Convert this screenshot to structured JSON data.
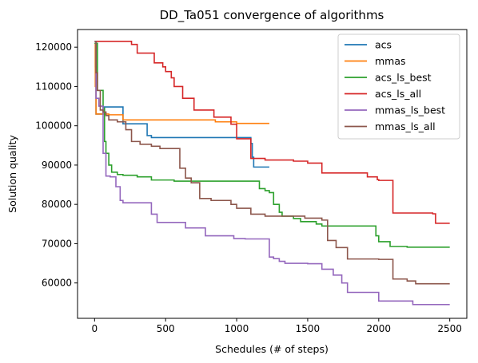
{
  "chart_data": {
    "type": "line",
    "title": "DD_Ta051 convergence of algorithms",
    "xlabel": "Schedules (# of steps)",
    "ylabel": "Solution quality",
    "xlim": [
      -120,
      2620
    ],
    "ylim": [
      51000,
      124500
    ],
    "xticks": [
      0,
      500,
      1000,
      1500,
      2000,
      2500
    ],
    "yticks": [
      60000,
      70000,
      80000,
      90000,
      100000,
      110000,
      120000
    ],
    "grid": false,
    "legend": "top-right",
    "step": true,
    "series": [
      {
        "name": "acs",
        "color": "#1f77b4",
        "x": [
          0,
          5,
          10,
          60,
          200,
          350,
          370,
          400,
          1000,
          1100,
          1110,
          1120,
          1230
        ],
        "y": [
          121000,
          115000,
          103000,
          104800,
          100500,
          100500,
          97500,
          97000,
          97000,
          95500,
          92000,
          89500,
          89500
        ]
      },
      {
        "name": "mmas",
        "color": "#ff7f0e",
        "x": [
          0,
          5,
          10,
          100,
          200,
          850,
          1000,
          1230
        ],
        "y": [
          121000,
          110000,
          103000,
          102800,
          101500,
          101000,
          100600,
          100600
        ]
      },
      {
        "name": "acs_ls_best",
        "color": "#2ca02c",
        "x": [
          0,
          20,
          60,
          70,
          80,
          100,
          120,
          160,
          200,
          300,
          400,
          560,
          1000,
          1160,
          1200,
          1230,
          1260,
          1300,
          1320,
          1400,
          1450,
          1560,
          1600,
          1750,
          1980,
          2000,
          2080,
          2200,
          2500
        ],
        "y": [
          121000,
          109000,
          104500,
          96000,
          93000,
          90000,
          88200,
          87600,
          87400,
          87000,
          86200,
          85900,
          85900,
          84000,
          83500,
          83000,
          80000,
          78000,
          77000,
          76400,
          75600,
          75000,
          74500,
          74500,
          72000,
          70500,
          69300,
          69100,
          69100
        ]
      },
      {
        "name": "acs_ls_all",
        "color": "#d62728",
        "x": [
          0,
          5,
          260,
          300,
          420,
          480,
          500,
          540,
          560,
          620,
          700,
          840,
          960,
          1000,
          1100,
          1200,
          1400,
          1500,
          1600,
          1850,
          1920,
          1990,
          2000,
          2100,
          2380,
          2400,
          2500
        ],
        "y": [
          121500,
          121500,
          120700,
          118500,
          116000,
          115000,
          113800,
          112200,
          110000,
          107000,
          104000,
          102200,
          100400,
          96700,
          91700,
          91300,
          91000,
          90500,
          88000,
          88000,
          87000,
          86300,
          86100,
          77800,
          77600,
          75200,
          75200
        ]
      },
      {
        "name": "mmas_ls_best",
        "color": "#9467bd",
        "x": [
          0,
          10,
          30,
          60,
          80,
          110,
          150,
          180,
          200,
          400,
          440,
          640,
          780,
          980,
          1060,
          1230,
          1260,
          1300,
          1340,
          1500,
          1600,
          1680,
          1740,
          1780,
          1980,
          2000,
          2240,
          2500
        ],
        "y": [
          121500,
          107000,
          105000,
          93000,
          87200,
          87000,
          84500,
          81000,
          80400,
          77500,
          75400,
          74000,
          72000,
          71300,
          71200,
          66600,
          66200,
          65500,
          65000,
          64900,
          63500,
          62000,
          60000,
          57600,
          57600,
          55400,
          54500,
          54500
        ]
      },
      {
        "name": "mmas_ls_all",
        "color": "#8c564b",
        "x": [
          0,
          10,
          20,
          40,
          60,
          80,
          100,
          160,
          220,
          260,
          320,
          400,
          460,
          600,
          640,
          680,
          740,
          820,
          960,
          1000,
          1100,
          1200,
          1480,
          1600,
          1640,
          1700,
          1780,
          2000,
          2100,
          2200,
          2260,
          2500
        ],
        "y": [
          121500,
          113500,
          109000,
          104000,
          103500,
          102600,
          101500,
          101000,
          99000,
          96000,
          95300,
          94800,
          94200,
          89200,
          86700,
          85500,
          81500,
          81000,
          80000,
          79000,
          77500,
          77000,
          76500,
          76000,
          70800,
          69000,
          66100,
          66000,
          61000,
          60500,
          59800,
          59800
        ]
      }
    ]
  }
}
